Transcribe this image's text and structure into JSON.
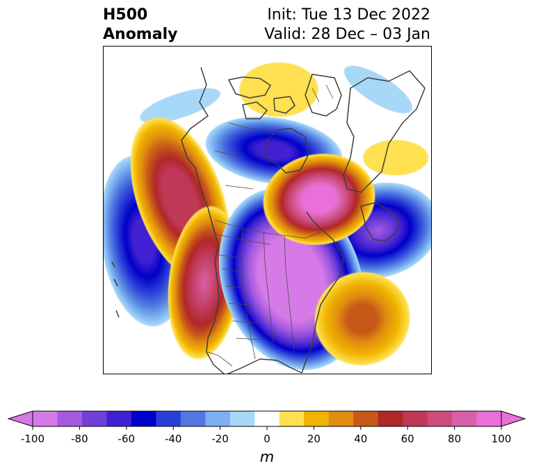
{
  "header": {
    "title_line1": "H500",
    "title_line2": "Anomaly",
    "init_text": "Init: Tue 13 Dec 2022",
    "valid_text": "Valid: 28 Dec – 03 Jan"
  },
  "colorbar": {
    "unit": "m",
    "ticks": [
      "-100",
      "-80",
      "-60",
      "-40",
      "-20",
      "0",
      "20",
      "40",
      "60",
      "80",
      "100"
    ],
    "levels": [
      -100,
      -90,
      -80,
      -70,
      -60,
      -50,
      -40,
      -30,
      -20,
      -10,
      10,
      20,
      30,
      40,
      50,
      60,
      70,
      80,
      90,
      100
    ],
    "colors": [
      "#d67ae8",
      "#a65ae0",
      "#7040d8",
      "#4020d0",
      "#0000c8",
      "#2a3ed8",
      "#5078e0",
      "#7cb0f0",
      "#a8d8f8",
      "#ffffff",
      "#ffe050",
      "#f0b400",
      "#e08c10",
      "#c85818",
      "#b02828",
      "#c03858",
      "#cc4c7c",
      "#d860a8",
      "#e870d8"
    ]
  },
  "map": {
    "region": "North America / North Atlantic / North Pacific",
    "anomaly_centers": [
      {
        "name": "NE Pacific ridge",
        "value": 70
      },
      {
        "name": "Western US ridge",
        "value": 80
      },
      {
        "name": "Greenland ridge",
        "value": 100
      },
      {
        "name": "Central US trough",
        "value": -100
      },
      {
        "name": "Hudson Bay trough",
        "value": -70
      },
      {
        "name": "Central Pacific trough",
        "value": -70
      },
      {
        "name": "North Atlantic trough",
        "value": -80
      },
      {
        "name": "Western Atlantic ridge",
        "value": 50
      },
      {
        "name": "Arctic ridge",
        "value": 20
      }
    ]
  }
}
